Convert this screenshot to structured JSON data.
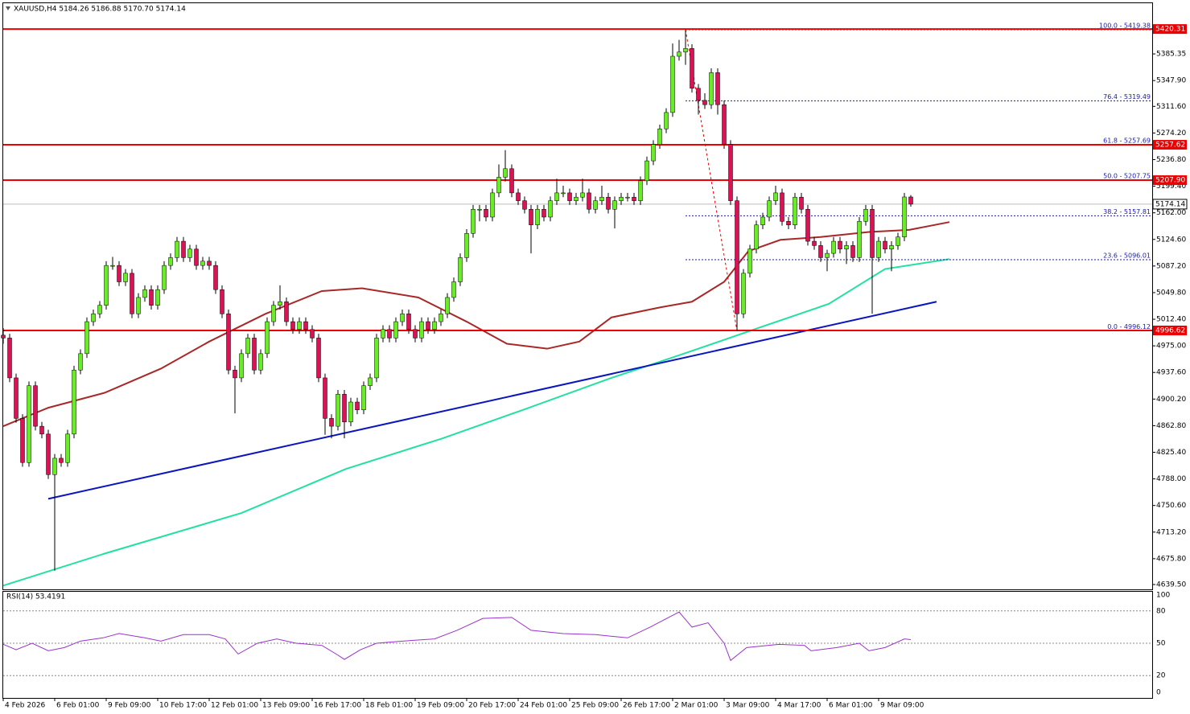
{
  "chart_data": {
    "type": "candlestick",
    "header": "XAUUSD,H4  5184.26 5186.88 5170.70 5174.14",
    "bull_color": "#66ee22",
    "bear_color": "#dd1155",
    "ylim": [
      4632.7,
      5456.6
    ],
    "yticks": [
      5385.35,
      {
        "value": 5347.9,
        "label": "5347.90"
      },
      {
        "value": 5311.6,
        "label": "5311.60"
      },
      {
        "value": 5274.2,
        "label": "5274.20"
      },
      {
        "value": 5236.8,
        "label": "5236.80"
      },
      {
        "value": 5199.4,
        "label": "5199.40"
      },
      {
        "value": 5162,
        "label": "5162.00"
      },
      {
        "value": 5124.6,
        "label": "5124.60"
      },
      {
        "value": 5087.2,
        "label": "5087.20"
      },
      {
        "value": 5049.8,
        "label": "5049.80"
      },
      {
        "value": 5012.4,
        "label": "5012.40"
      },
      {
        "value": 4975,
        "label": "4975.00"
      },
      {
        "value": 4937.6,
        "label": "4937.60"
      },
      {
        "value": 4900.2,
        "label": "4900.20"
      },
      {
        "value": 4862.8,
        "label": "4862.80"
      },
      {
        "value": 4825.4,
        "label": "4825.40"
      },
      {
        "value": 4788,
        "label": "4788.00"
      },
      {
        "value": 4750.6,
        "label": "4750.60"
      },
      {
        "value": 4713.2,
        "label": "4713.20"
      },
      {
        "value": 4675.8,
        "label": "4675.80"
      },
      {
        "value": 4639.5,
        "label": "4639.50"
      }
    ],
    "xlim": [
      -0.5,
      178.5
    ],
    "xticks": [
      {
        "value": 0,
        "label": "4 Feb 2026"
      },
      {
        "value": 8,
        "label": "6 Feb 01:00"
      },
      {
        "value": 16,
        "label": "9 Feb 09:00"
      },
      {
        "value": 24,
        "label": "10 Feb 17:00"
      },
      {
        "value": 32,
        "label": "12 Feb 01:00"
      },
      {
        "value": 40,
        "label": "13 Feb 09:00"
      },
      {
        "value": 48,
        "label": "16 Feb 17:00"
      },
      {
        "value": 56,
        "label": "18 Feb 01:00"
      },
      {
        "value": 64,
        "label": "19 Feb 09:00"
      },
      {
        "value": 72,
        "label": "20 Feb 17:00"
      },
      {
        "value": 80,
        "label": "24 Feb 01:00"
      },
      {
        "value": 88,
        "label": "25 Feb 09:00"
      },
      {
        "value": 96,
        "label": "26 Feb 17:00"
      },
      {
        "value": 104,
        "label": "2 Mar 01:00"
      },
      {
        "value": 112,
        "label": "3 Mar 09:00"
      },
      {
        "value": 120,
        "label": "4 Mar 17:00"
      },
      {
        "value": 128,
        "label": "6 Mar 01:00"
      },
      {
        "value": 136,
        "label": "9 Mar 09:00"
      }
    ],
    "candles": [
      [
        4990,
        5000,
        4978,
        4986
      ],
      [
        4986,
        4992,
        4924,
        4930
      ],
      [
        4930,
        4936,
        4867,
        4873
      ],
      [
        4873,
        4879,
        4805,
        4811
      ],
      [
        4811,
        4925,
        4805,
        4919
      ],
      [
        4919,
        4925,
        4856,
        4862
      ],
      [
        4862,
        4868,
        4845,
        4851
      ],
      [
        4851,
        4857,
        4788,
        4794
      ],
      [
        4794,
        4823,
        4659,
        4817
      ],
      [
        4817,
        4823,
        4805,
        4811
      ],
      [
        4811,
        4857,
        4805,
        4851
      ],
      [
        4851,
        4947,
        4845,
        4941
      ],
      [
        4941,
        4970,
        4935,
        4964
      ],
      [
        4964,
        5015,
        4958,
        5009
      ],
      [
        5009,
        5026,
        5003,
        5020
      ],
      [
        5020,
        5038,
        5014,
        5032
      ],
      [
        5032,
        5094,
        5026,
        5088
      ],
      [
        5088,
        5100,
        5082,
        5088
      ],
      [
        5088,
        5094,
        5059,
        5065
      ],
      [
        5065,
        5083,
        5059,
        5077
      ],
      [
        5077,
        5083,
        5014,
        5020
      ],
      [
        5020,
        5049,
        5014,
        5043
      ],
      [
        5043,
        5060,
        5037,
        5054
      ],
      [
        5054,
        5060,
        5026,
        5032
      ],
      [
        5032,
        5060,
        5026,
        5054
      ],
      [
        5054,
        5094,
        5048,
        5088
      ],
      [
        5088,
        5105,
        5082,
        5099
      ],
      [
        5099,
        5128,
        5093,
        5122
      ],
      [
        5122,
        5128,
        5093,
        5099
      ],
      [
        5099,
        5117,
        5093,
        5111
      ],
      [
        5111,
        5117,
        5082,
        5088
      ],
      [
        5088,
        5100,
        5082,
        5094
      ],
      [
        5094,
        5100,
        5082,
        5088
      ],
      [
        5088,
        5094,
        5048,
        5054
      ],
      [
        5054,
        5060,
        5014,
        5020
      ],
      [
        5020,
        5026,
        4935,
        4941
      ],
      [
        4941,
        4947,
        4880,
        4930
      ],
      [
        4930,
        4970,
        4924,
        4964
      ],
      [
        4964,
        4992,
        4958,
        4986
      ],
      [
        4986,
        4992,
        4935,
        4941
      ],
      [
        4941,
        4970,
        4935,
        4964
      ],
      [
        4964,
        5015,
        4958,
        5009
      ],
      [
        5009,
        5038,
        5003,
        5032
      ],
      [
        5032,
        5060,
        5026,
        5037
      ],
      [
        5037,
        5043,
        5003,
        5009
      ],
      [
        5009,
        5015,
        4992,
        4998
      ],
      [
        4998,
        5015,
        4992,
        5009
      ],
      [
        5009,
        5015,
        4992,
        4998
      ],
      [
        4998,
        5004,
        4980,
        4986
      ],
      [
        4986,
        4992,
        4924,
        4930
      ],
      [
        4930,
        4936,
        4850,
        4873
      ],
      [
        4873,
        4879,
        4845,
        4862
      ],
      [
        4862,
        4913,
        4856,
        4907
      ],
      [
        4907,
        4913,
        4845,
        4868
      ],
      [
        4868,
        4902,
        4862,
        4896
      ],
      [
        4896,
        4902,
        4879,
        4885
      ],
      [
        4885,
        4925,
        4879,
        4919
      ],
      [
        4919,
        4936,
        4913,
        4930
      ],
      [
        4930,
        4992,
        4924,
        4986
      ],
      [
        4986,
        5004,
        4980,
        4998
      ],
      [
        4998,
        5004,
        4980,
        4986
      ],
      [
        4986,
        5015,
        4980,
        5009
      ],
      [
        5009,
        5026,
        5003,
        5020
      ],
      [
        5020,
        5026,
        4992,
        4998
      ],
      [
        4998,
        5004,
        4980,
        4986
      ],
      [
        4986,
        5015,
        4980,
        5009
      ],
      [
        5009,
        5015,
        4992,
        4998
      ],
      [
        4998,
        5015,
        4992,
        5009
      ],
      [
        5009,
        5026,
        5003,
        5020
      ],
      [
        5020,
        5049,
        5014,
        5043
      ],
      [
        5043,
        5071,
        5037,
        5065
      ],
      [
        5065,
        5105,
        5059,
        5099
      ],
      [
        5099,
        5139,
        5093,
        5133
      ],
      [
        5133,
        5173,
        5127,
        5167
      ],
      [
        5167,
        5173,
        5150,
        5167
      ],
      [
        5167,
        5173,
        5150,
        5156
      ],
      [
        5156,
        5196,
        5150,
        5190
      ],
      [
        5190,
        5230,
        5184,
        5212
      ],
      [
        5212,
        5250,
        5206,
        5224
      ],
      [
        5224,
        5230,
        5184,
        5190
      ],
      [
        5190,
        5196,
        5173,
        5179
      ],
      [
        5179,
        5185,
        5161,
        5167
      ],
      [
        5167,
        5173,
        5105,
        5145
      ],
      [
        5145,
        5173,
        5139,
        5167
      ],
      [
        5167,
        5173,
        5150,
        5156
      ],
      [
        5156,
        5185,
        5150,
        5179
      ],
      [
        5179,
        5210,
        5173,
        5190
      ],
      [
        5190,
        5200,
        5184,
        5190
      ],
      [
        5190,
        5196,
        5173,
        5179
      ],
      [
        5179,
        5190,
        5173,
        5184
      ],
      [
        5184,
        5210,
        5178,
        5190
      ],
      [
        5190,
        5196,
        5161,
        5167
      ],
      [
        5167,
        5185,
        5161,
        5179
      ],
      [
        5179,
        5200,
        5173,
        5184
      ],
      [
        5184,
        5190,
        5161,
        5167
      ],
      [
        5167,
        5185,
        5140,
        5179
      ],
      [
        5179,
        5190,
        5173,
        5184
      ],
      [
        5184,
        5190,
        5178,
        5184
      ],
      [
        5184,
        5190,
        5173,
        5179
      ],
      [
        5179,
        5213,
        5173,
        5207
      ],
      [
        5207,
        5241,
        5201,
        5235
      ],
      [
        5235,
        5264,
        5229,
        5258
      ],
      [
        5258,
        5286,
        5252,
        5280
      ],
      [
        5280,
        5309,
        5274,
        5303
      ],
      [
        5303,
        5400,
        5297,
        5382
      ],
      [
        5382,
        5405,
        5376,
        5388
      ],
      [
        5388,
        5419.38,
        5370,
        5393
      ],
      [
        5393,
        5399,
        5331,
        5337
      ],
      [
        5337,
        5343,
        5300,
        5320
      ],
      [
        5320,
        5330,
        5308,
        5314
      ],
      [
        5314,
        5365,
        5308,
        5359
      ],
      [
        5359,
        5365,
        5300,
        5314
      ],
      [
        5314,
        5320,
        5252,
        5258
      ],
      [
        5258,
        5264,
        5173,
        5179
      ],
      [
        5179,
        5185,
        4996.12,
        5020
      ],
      [
        5020,
        5083,
        5014,
        5077
      ],
      [
        5077,
        5117,
        5071,
        5111
      ],
      [
        5111,
        5151,
        5105,
        5145
      ],
      [
        5145,
        5162,
        5139,
        5156
      ],
      [
        5156,
        5185,
        5150,
        5179
      ],
      [
        5179,
        5200,
        5173,
        5190
      ],
      [
        5190,
        5196,
        5144,
        5150
      ],
      [
        5150,
        5156,
        5139,
        5145
      ],
      [
        5145,
        5190,
        5139,
        5184
      ],
      [
        5184,
        5190,
        5161,
        5167
      ],
      [
        5167,
        5173,
        5116,
        5122
      ],
      [
        5122,
        5128,
        5110,
        5116
      ],
      [
        5116,
        5122,
        5093,
        5099
      ],
      [
        5099,
        5110,
        5080,
        5105
      ],
      [
        5105,
        5128,
        5099,
        5122
      ],
      [
        5122,
        5128,
        5105,
        5111
      ],
      [
        5111,
        5122,
        5090,
        5116
      ],
      [
        5116,
        5122,
        5093,
        5099
      ],
      [
        5099,
        5156,
        5093,
        5150
      ],
      [
        5150,
        5173,
        5144,
        5167
      ],
      [
        5167,
        5173,
        5020,
        5099
      ],
      [
        5099,
        5128,
        5093,
        5122
      ],
      [
        5122,
        5128,
        5105,
        5111
      ],
      [
        5111,
        5122,
        5080,
        5116
      ],
      [
        5116,
        5134,
        5110,
        5128
      ],
      [
        5128,
        5190,
        5122,
        5184.26
      ],
      [
        5184.26,
        5186.88,
        5170.7,
        5174.14
      ]
    ],
    "levels": [
      {
        "value": 5420.31,
        "label": "5420.31"
      },
      {
        "value": 5257.62,
        "label": "5257.62"
      },
      {
        "value": 5207.9,
        "label": "5207.90"
      },
      {
        "value": 4996.62,
        "label": "4996.62"
      }
    ],
    "level_color": "#ee0000",
    "current_price": 5174.14,
    "fib": [
      {
        "label": "100.0 - 5419.38",
        "value": 5419.38
      },
      {
        "label": "76.4 - 5319.49",
        "value": 5319.49
      },
      {
        "label": "61.8 - 5257.69",
        "value": 5257.69
      },
      {
        "label": "50.0 - 5207.75",
        "value": 5207.75
      },
      {
        "label": "38.2 - 5157.81",
        "value": 5157.81
      },
      {
        "label": "23.6 - 5096.01",
        "value": 5096.01
      },
      {
        "label": "0.0 - 4996.12",
        "value": 4996.12
      }
    ],
    "fib_x": [
      106,
      114
    ],
    "fib_color": "#1a1aaa",
    "trendline": {
      "color": "#0a14c0",
      "x": [
        7,
        145
      ],
      "values": [
        4760,
        5037
      ]
    },
    "moving_averages": [
      {
        "color": "#a82828",
        "x": [
          0,
          7,
          15.75,
          24.5,
          32,
          40.75,
          49.5,
          55.75,
          64.5,
          72,
          78.25,
          84.5,
          89.5,
          94.5,
          102,
          107,
          112,
          115.75,
          120.75,
          127,
          134.5,
          140.75,
          147
        ],
        "values": [
          4862,
          4888,
          4909,
          4943,
          4981,
          5020,
          5052,
          5056,
          5043,
          5009,
          4978,
          4971,
          4981,
          5015,
          5029,
          5037,
          5065,
          5108,
          5124,
          5128,
          5135,
          5138,
          5149
        ]
      },
      {
        "color": "#22e0a0",
        "x": [
          0,
          15.75,
          37,
          53.25,
          68.25,
          80.75,
          94.5,
          105.75,
          118.25,
          128.25,
          137,
          147
        ],
        "values": [
          4638,
          4683,
          4740,
          4802,
          4845,
          4885,
          4930,
          4964,
          5003,
          5034,
          5083,
          5097
        ]
      }
    ],
    "rsi": {
      "label": "RSI(14) 53.4191",
      "color": "#9932cc",
      "ylim": [
        0,
        100
      ],
      "yticks": [
        100,
        80,
        50,
        20,
        0
      ],
      "x": [
        0,
        2,
        4.5,
        7,
        9.5,
        12,
        15.5,
        18,
        22,
        24.5,
        28,
        32,
        34.5,
        36.5,
        39.5,
        42.5,
        45.5,
        49.5,
        52,
        53,
        55.5,
        58,
        62,
        67,
        70.5,
        74.5,
        79,
        82,
        87,
        92,
        97,
        100.5,
        105,
        107,
        109.5,
        112,
        113,
        115.5,
        120.5,
        124.5,
        125.5,
        129.5,
        133,
        134.5,
        137,
        140,
        141
      ],
      "values": [
        49,
        44,
        50,
        43,
        46,
        52,
        55,
        59,
        55,
        52,
        58,
        58,
        54,
        40,
        50,
        54,
        50,
        48,
        39,
        35,
        44,
        50,
        52,
        54,
        62,
        73,
        74,
        62,
        59,
        58,
        55,
        65,
        79,
        65,
        69,
        50,
        34,
        46,
        49,
        48,
        43,
        46,
        50,
        43,
        46,
        54,
        53.4
      ]
    }
  }
}
